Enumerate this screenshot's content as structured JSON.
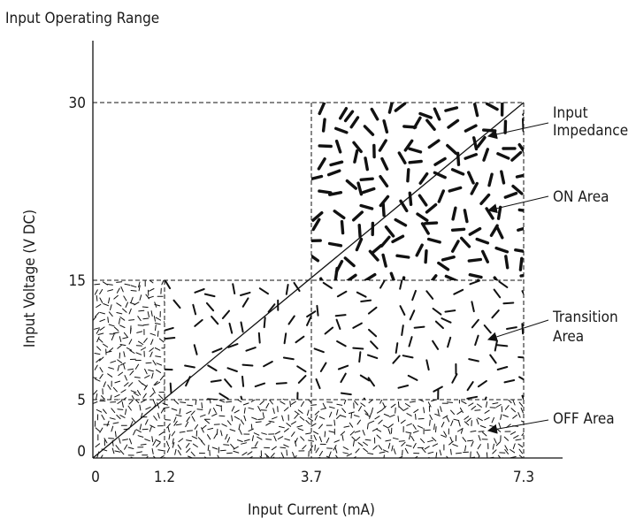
{
  "chart_data": {
    "type": "region-diagram",
    "title": "Input Operating Range",
    "xlabel": "Input Current (mA)",
    "ylabel": "Input Voltage (V DC)",
    "xticks": [
      "0",
      "1.2",
      "3.7",
      "7.3"
    ],
    "yticks": [
      "0",
      "5",
      "15",
      "30"
    ],
    "x_values": [
      0,
      1.2,
      3.7,
      7.3
    ],
    "y_values": [
      0,
      5,
      15,
      30
    ],
    "regions": [
      {
        "name": "ON Area",
        "x": [
          3.7,
          7.3
        ],
        "y": [
          15,
          30
        ],
        "pattern": "heavy"
      },
      {
        "name": "Transition Area",
        "x": [
          1.2,
          7.3
        ],
        "y": [
          5,
          15
        ],
        "pattern": "medium"
      },
      {
        "name": "Transition Area",
        "x": [
          0,
          1.2
        ],
        "y": [
          5,
          15
        ],
        "pattern": "fine"
      },
      {
        "name": "OFF Area",
        "x": [
          0,
          7.3
        ],
        "y": [
          0,
          5
        ],
        "pattern": "fine"
      }
    ],
    "impedance_line": {
      "from": [
        0,
        0
      ],
      "to": [
        7.3,
        30
      ]
    },
    "annotations": [
      "Input",
      "Impedance",
      "ON Area",
      "Transition",
      "Area",
      "OFF Area"
    ]
  }
}
